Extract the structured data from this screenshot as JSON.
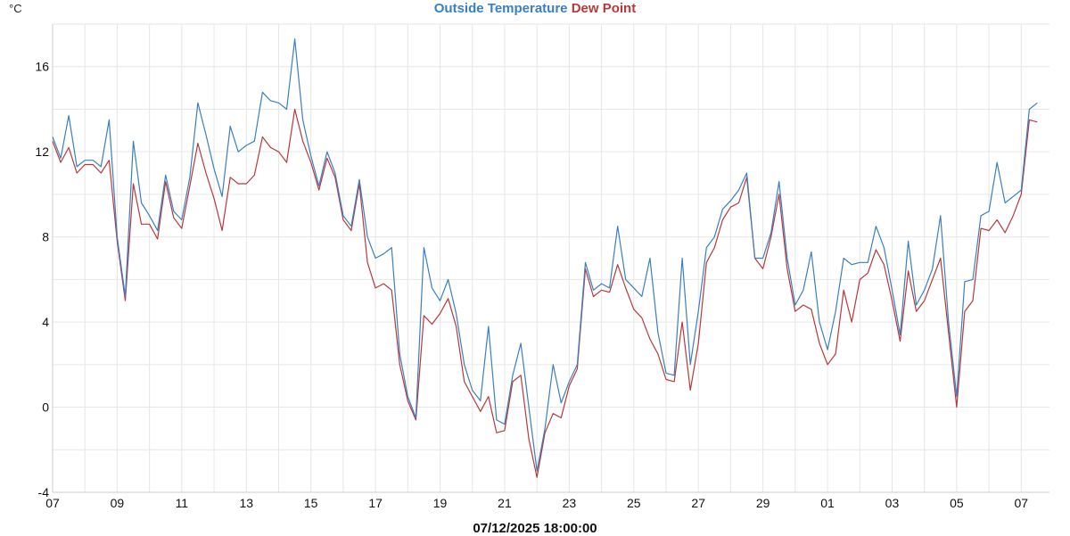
{
  "chart_data": {
    "type": "line",
    "title_parts": [
      "Outside Temperature",
      "Dew Point"
    ],
    "ylabel": "°C",
    "xlabel": "07/12/2025 18:00:00",
    "ylim": [
      -4,
      18
    ],
    "yticks": [
      -4,
      0,
      4,
      8,
      12,
      16
    ],
    "xlim": [
      "2025-11-07T00:00",
      "2025-12-07T21:00"
    ],
    "xtick_labels": [
      "07",
      "09",
      "11",
      "13",
      "15",
      "17",
      "19",
      "21",
      "23",
      "25",
      "27",
      "29",
      "01",
      "03",
      "05",
      "07"
    ],
    "grid": true,
    "legend": "top-center",
    "x": [
      "2025-11-07T00:00",
      "2025-11-07T06:00",
      "2025-11-07T12:00",
      "2025-11-07T18:00",
      "2025-11-08T00:00",
      "2025-11-08T06:00",
      "2025-11-08T12:00",
      "2025-11-08T18:00",
      "2025-11-09T00:00",
      "2025-11-09T06:00",
      "2025-11-09T12:00",
      "2025-11-09T18:00",
      "2025-11-10T00:00",
      "2025-11-10T06:00",
      "2025-11-10T12:00",
      "2025-11-10T18:00",
      "2025-11-11T00:00",
      "2025-11-11T06:00",
      "2025-11-11T12:00",
      "2025-11-11T18:00",
      "2025-11-12T00:00",
      "2025-11-12T06:00",
      "2025-11-12T12:00",
      "2025-11-12T18:00",
      "2025-11-13T00:00",
      "2025-11-13T06:00",
      "2025-11-13T12:00",
      "2025-11-13T18:00",
      "2025-11-14T00:00",
      "2025-11-14T06:00",
      "2025-11-14T12:00",
      "2025-11-14T18:00",
      "2025-11-15T00:00",
      "2025-11-15T06:00",
      "2025-11-15T12:00",
      "2025-11-15T18:00",
      "2025-11-16T00:00",
      "2025-11-16T06:00",
      "2025-11-16T12:00",
      "2025-11-16T18:00",
      "2025-11-17T00:00",
      "2025-11-17T06:00",
      "2025-11-17T12:00",
      "2025-11-17T18:00",
      "2025-11-18T00:00",
      "2025-11-18T06:00",
      "2025-11-18T12:00",
      "2025-11-18T18:00",
      "2025-11-19T00:00",
      "2025-11-19T06:00",
      "2025-11-19T12:00",
      "2025-11-19T18:00",
      "2025-11-20T00:00",
      "2025-11-20T06:00",
      "2025-11-20T12:00",
      "2025-11-20T18:00",
      "2025-11-21T00:00",
      "2025-11-21T06:00",
      "2025-11-21T12:00",
      "2025-11-21T18:00",
      "2025-11-22T00:00",
      "2025-11-22T06:00",
      "2025-11-22T12:00",
      "2025-11-22T18:00",
      "2025-11-23T00:00",
      "2025-11-23T06:00",
      "2025-11-23T12:00",
      "2025-11-23T18:00",
      "2025-11-24T00:00",
      "2025-11-24T06:00",
      "2025-11-24T12:00",
      "2025-11-24T18:00",
      "2025-11-25T00:00",
      "2025-11-25T06:00",
      "2025-11-25T12:00",
      "2025-11-25T18:00",
      "2025-11-26T00:00",
      "2025-11-26T06:00",
      "2025-11-26T12:00",
      "2025-11-26T18:00",
      "2025-11-27T00:00",
      "2025-11-27T06:00",
      "2025-11-27T12:00",
      "2025-11-27T18:00",
      "2025-11-28T00:00",
      "2025-11-28T06:00",
      "2025-11-28T12:00",
      "2025-11-28T18:00",
      "2025-11-29T00:00",
      "2025-11-29T06:00",
      "2025-11-29T12:00",
      "2025-11-29T18:00",
      "2025-11-30T00:00",
      "2025-11-30T06:00",
      "2025-11-30T12:00",
      "2025-11-30T18:00",
      "2025-12-01T00:00",
      "2025-12-01T06:00",
      "2025-12-01T12:00",
      "2025-12-01T18:00",
      "2025-12-02T00:00",
      "2025-12-02T06:00",
      "2025-12-02T12:00",
      "2025-12-02T18:00",
      "2025-12-03T00:00",
      "2025-12-03T06:00",
      "2025-12-03T12:00",
      "2025-12-03T18:00",
      "2025-12-04T00:00",
      "2025-12-04T06:00",
      "2025-12-04T12:00",
      "2025-12-04T18:00",
      "2025-12-05T00:00",
      "2025-12-05T06:00",
      "2025-12-05T12:00",
      "2025-12-05T18:00",
      "2025-12-06T00:00",
      "2025-12-06T06:00",
      "2025-12-06T12:00",
      "2025-12-06T18:00",
      "2025-12-07T00:00",
      "2025-12-07T06:00",
      "2025-12-07T12:00"
    ],
    "series": [
      {
        "name": "Outside Temperature",
        "color": "#3a7fc1",
        "values": [
          12.7,
          11.7,
          13.7,
          11.3,
          11.6,
          11.6,
          11.3,
          13.5,
          8.0,
          5.2,
          12.5,
          9.6,
          9.0,
          8.3,
          10.9,
          9.2,
          8.8,
          10.8,
          14.3,
          12.8,
          11.2,
          9.9,
          13.2,
          12.0,
          12.3,
          12.5,
          14.8,
          14.4,
          14.3,
          14.0,
          17.3,
          13.5,
          11.8,
          10.4,
          12.0,
          11.0,
          9.0,
          8.5,
          10.7,
          8.0,
          7.0,
          7.2,
          7.5,
          2.5,
          0.5,
          -0.5,
          7.5,
          5.6,
          5.0,
          6.0,
          4.4,
          2.0,
          0.8,
          0.3,
          3.8,
          -0.6,
          -0.8,
          1.5,
          3.0,
          0.0,
          -3.0,
          -1.0,
          2.0,
          0.2,
          1.2,
          2.0,
          6.8,
          5.5,
          5.8,
          5.6,
          8.5,
          6.0,
          5.6,
          5.2,
          7.0,
          3.5,
          1.6,
          1.5,
          7.0,
          2.0,
          4.5,
          7.5,
          8.0,
          9.3,
          9.7,
          10.2,
          11.0,
          7.0,
          7.0,
          8.2,
          10.6,
          7.0,
          4.8,
          5.5,
          7.3,
          4.0,
          2.7,
          4.5,
          7.0,
          6.7,
          6.8,
          6.8,
          8.5,
          7.5,
          5.5,
          3.4,
          7.8,
          4.8,
          5.5,
          6.5,
          9.0,
          4.0,
          0.5,
          5.9,
          6.0,
          9.0,
          9.2,
          11.5,
          9.6,
          9.9,
          10.2,
          14.0,
          14.3
        ]
      },
      {
        "name": "Dew Point",
        "color": "#b8383b",
        "values": [
          12.5,
          11.5,
          12.2,
          11.0,
          11.4,
          11.4,
          11.0,
          11.6,
          7.8,
          5.0,
          10.5,
          8.6,
          8.6,
          7.9,
          10.6,
          8.9,
          8.4,
          10.4,
          12.4,
          11.0,
          9.8,
          8.3,
          10.8,
          10.5,
          10.5,
          10.9,
          12.7,
          12.2,
          12.0,
          11.5,
          14.0,
          12.5,
          11.5,
          10.2,
          11.7,
          10.8,
          8.8,
          8.3,
          10.5,
          6.8,
          5.6,
          5.8,
          5.5,
          2.0,
          0.3,
          -0.6,
          4.3,
          3.9,
          4.4,
          5.1,
          3.8,
          1.2,
          0.5,
          -0.2,
          0.5,
          -1.2,
          -1.1,
          1.2,
          1.5,
          -1.5,
          -3.3,
          -1.2,
          -0.3,
          -0.5,
          1.0,
          1.8,
          6.5,
          5.2,
          5.5,
          5.4,
          6.7,
          5.6,
          4.6,
          4.2,
          3.2,
          2.5,
          1.3,
          1.2,
          4.0,
          0.8,
          3.0,
          6.8,
          7.5,
          8.8,
          9.4,
          9.6,
          10.8,
          7.0,
          6.5,
          8.0,
          10.0,
          6.5,
          4.5,
          4.8,
          4.6,
          3.0,
          2.0,
          2.5,
          5.5,
          4.0,
          6.0,
          6.3,
          7.4,
          6.7,
          5.0,
          3.1,
          6.4,
          4.5,
          5.0,
          6.0,
          7.0,
          3.5,
          0.0,
          4.5,
          5.0,
          8.4,
          8.3,
          8.8,
          8.2,
          9.0,
          10.0,
          13.5,
          13.4
        ]
      }
    ]
  }
}
